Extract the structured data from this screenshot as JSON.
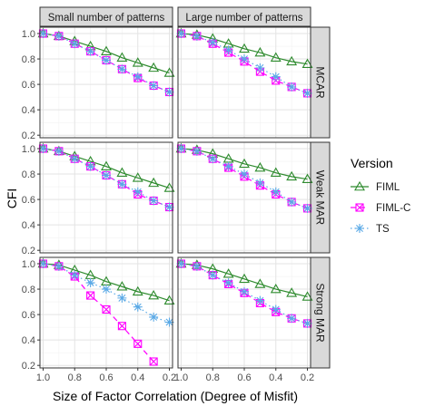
{
  "chart_data": {
    "type": "line",
    "xlabel": "Size of Factor Correlation (Degree of Misfit)",
    "ylabel": "CFI",
    "x": [
      1.0,
      0.9,
      0.8,
      0.7,
      0.6,
      0.5,
      0.4,
      0.3,
      0.2
    ],
    "xlim": [
      1.02,
      0.18
    ],
    "ylim": [
      0.18,
      1.05
    ],
    "x_ticks": [
      1.0,
      0.8,
      0.6,
      0.4,
      0.2
    ],
    "x_tick_labels": [
      "1.0",
      "0.8",
      "0.6",
      "0.4",
      "0.2"
    ],
    "y_ticks": [
      0.2,
      0.4,
      0.6,
      0.8,
      1.0
    ],
    "y_tick_labels": [
      "0.2",
      "0.4",
      "0.6",
      "0.8",
      "1.0"
    ],
    "grid": true,
    "legend": {
      "title": "Version",
      "placement": "right",
      "entries": [
        {
          "name": "FIML",
          "color": "#2e8b2e",
          "marker": "triangle",
          "dash": "solid"
        },
        {
          "name": "FIML-C",
          "color": "#ff00ff",
          "marker": "square-cross",
          "dash": "dashed"
        },
        {
          "name": "TS",
          "color": "#5aa9e6",
          "marker": "star",
          "dash": "dotted"
        }
      ]
    },
    "col_facets": [
      "Small number of patterns",
      "Large number of patterns"
    ],
    "row_facets": [
      "MCAR",
      "Weak MAR",
      "Strong MAR"
    ],
    "panels": [
      {
        "row": "MCAR",
        "col": "Small number of patterns",
        "series": [
          {
            "name": "FIML",
            "values": [
              1.0,
              0.98,
              0.94,
              0.9,
              0.86,
              0.81,
              0.77,
              0.73,
              0.69
            ]
          },
          {
            "name": "FIML-C",
            "values": [
              1.0,
              0.98,
              0.92,
              0.86,
              0.79,
              0.72,
              0.65,
              0.59,
              0.54
            ]
          },
          {
            "name": "TS",
            "values": [
              1.0,
              0.98,
              0.92,
              0.86,
              0.79,
              0.72,
              0.66,
              0.59,
              0.54
            ]
          }
        ]
      },
      {
        "row": "MCAR",
        "col": "Large number of patterns",
        "series": [
          {
            "name": "FIML",
            "values": [
              1.0,
              0.99,
              0.96,
              0.92,
              0.88,
              0.85,
              0.81,
              0.78,
              0.76
            ]
          },
          {
            "name": "FIML-C",
            "values": [
              1.0,
              0.98,
              0.92,
              0.85,
              0.78,
              0.7,
              0.63,
              0.58,
              0.53
            ]
          },
          {
            "name": "TS",
            "values": [
              1.0,
              0.98,
              0.93,
              0.87,
              0.8,
              0.73,
              0.66,
              0.58,
              0.53
            ]
          }
        ]
      },
      {
        "row": "Weak MAR",
        "col": "Small number of patterns",
        "series": [
          {
            "name": "FIML",
            "values": [
              1.0,
              0.98,
              0.94,
              0.9,
              0.86,
              0.81,
              0.77,
              0.73,
              0.69
            ]
          },
          {
            "name": "FIML-C",
            "values": [
              1.0,
              0.98,
              0.92,
              0.86,
              0.79,
              0.72,
              0.64,
              0.59,
              0.54
            ]
          },
          {
            "name": "TS",
            "values": [
              1.0,
              0.98,
              0.92,
              0.86,
              0.79,
              0.72,
              0.66,
              0.59,
              0.54
            ]
          }
        ]
      },
      {
        "row": "Weak MAR",
        "col": "Large number of patterns",
        "series": [
          {
            "name": "FIML",
            "values": [
              1.0,
              0.99,
              0.96,
              0.92,
              0.88,
              0.85,
              0.81,
              0.78,
              0.76
            ]
          },
          {
            "name": "FIML-C",
            "values": [
              1.0,
              0.98,
              0.92,
              0.85,
              0.78,
              0.71,
              0.64,
              0.58,
              0.53
            ]
          },
          {
            "name": "TS",
            "values": [
              1.0,
              0.98,
              0.92,
              0.86,
              0.8,
              0.73,
              0.66,
              0.58,
              0.53
            ]
          }
        ]
      },
      {
        "row": "Strong MAR",
        "col": "Small number of patterns",
        "series": [
          {
            "name": "FIML",
            "values": [
              1.0,
              0.99,
              0.95,
              0.91,
              0.86,
              0.82,
              0.78,
              0.75,
              0.71
            ]
          },
          {
            "name": "FIML-C",
            "values": [
              1.0,
              0.98,
              0.9,
              0.75,
              0.64,
              0.51,
              0.37,
              0.23,
              null
            ]
          },
          {
            "name": "TS",
            "values": [
              1.0,
              0.98,
              0.91,
              0.85,
              0.8,
              0.73,
              0.66,
              0.58,
              0.54
            ]
          }
        ]
      },
      {
        "row": "Strong MAR",
        "col": "Large number of patterns",
        "series": [
          {
            "name": "FIML",
            "values": [
              1.0,
              0.99,
              0.96,
              0.92,
              0.88,
              0.84,
              0.8,
              0.77,
              0.74
            ]
          },
          {
            "name": "FIML-C",
            "values": [
              1.0,
              0.98,
              0.91,
              0.84,
              0.77,
              0.69,
              0.62,
              0.57,
              0.53
            ]
          },
          {
            "name": "TS",
            "values": [
              1.0,
              0.98,
              0.91,
              0.85,
              0.78,
              0.71,
              0.64,
              0.57,
              0.53
            ]
          }
        ]
      }
    ]
  }
}
